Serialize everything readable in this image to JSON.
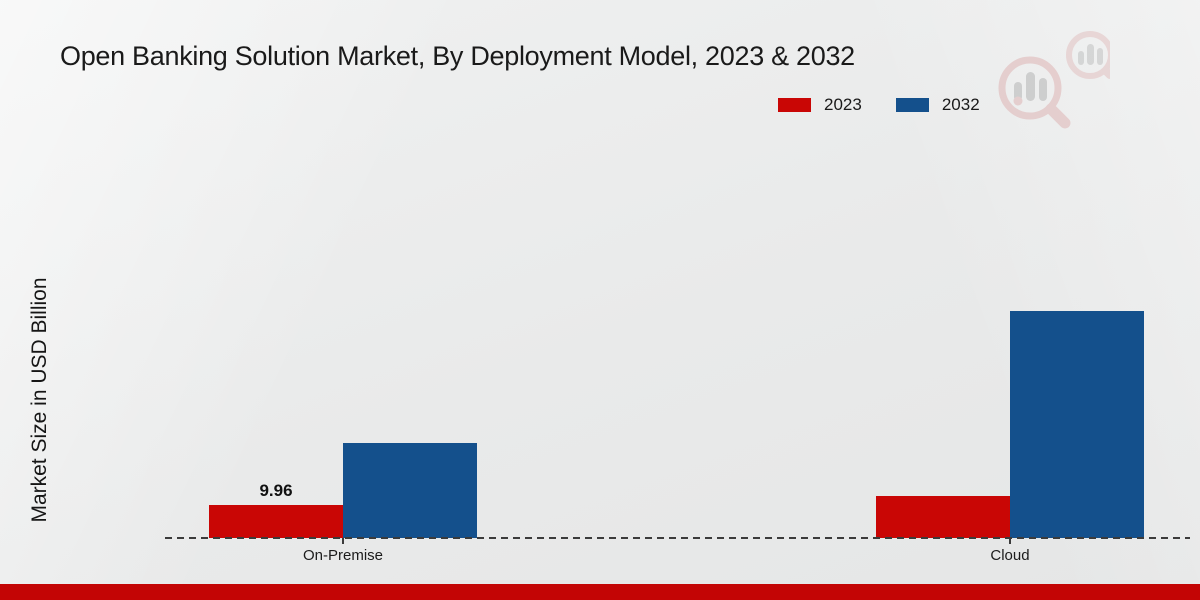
{
  "title": "Open Banking Solution Market, By Deployment Model, 2023 & 2032",
  "y_axis_label": "Market Size in USD Billion",
  "footer": {
    "accent_color": "#c30505"
  },
  "watermark_icon": "magnifier-bar-chart-logo",
  "colors": {
    "series_2023": "#c90605",
    "series_2032": "#14508c",
    "baseline": "#3b3b3b",
    "background": "#e9eaea",
    "footer_strip": "#c30505"
  },
  "chart_data": {
    "type": "bar",
    "title": "Open Banking Solution Market, By Deployment Model, 2023 & 2032",
    "xlabel": "",
    "ylabel": "Market Size in USD Billion",
    "categories": [
      "On-Premise",
      "Cloud"
    ],
    "series": [
      {
        "name": "2023",
        "color": "#c90605",
        "values": [
          9.96,
          12.8
        ],
        "value_labels": [
          "9.96",
          ""
        ]
      },
      {
        "name": "2032",
        "color": "#14508c",
        "values": [
          28.8,
          68.4
        ],
        "value_labels": [
          "",
          ""
        ]
      }
    ],
    "ylim": [
      0,
      80
    ],
    "grid": false,
    "legend_position": "top-right",
    "baseline_style": "dashed",
    "y_ticks_shown": false
  }
}
